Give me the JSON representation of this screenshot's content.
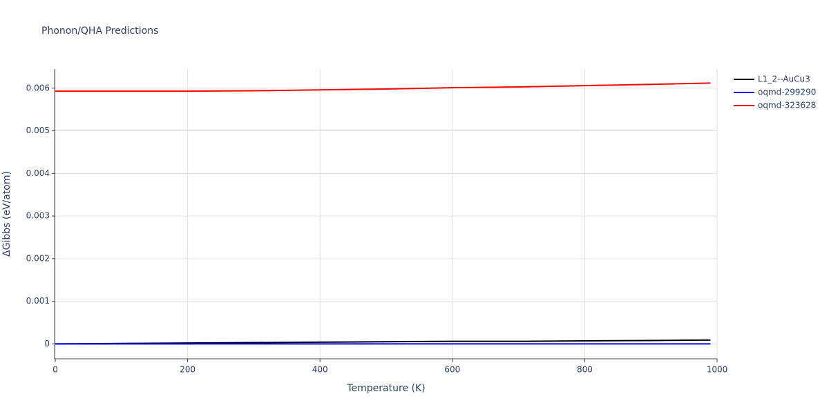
{
  "chart_data": {
    "type": "line",
    "title": "Phonon/QHA Predictions",
    "x_label": "Temperature (K)",
    "y_label": "ΔGibbs (eV/atom)",
    "x": [
      0,
      100,
      200,
      300,
      400,
      500,
      600,
      700,
      800,
      900,
      990
    ],
    "series": [
      {
        "name": "L1_2--AuCu3",
        "color": "#000000",
        "values": [
          0,
          1e-05,
          2e-05,
          3e-05,
          4e-05,
          5e-05,
          6e-05,
          6e-05,
          7e-05,
          8e-05,
          9e-05
        ]
      },
      {
        "name": "oqmd-299290",
        "color": "#0000ff",
        "values": [
          0,
          0,
          0,
          0,
          0,
          0,
          0,
          0,
          0,
          0,
          0
        ]
      },
      {
        "name": "oqmd-323628",
        "color": "#ff0000",
        "values": [
          0.00593,
          0.00593,
          0.00593,
          0.00594,
          0.00596,
          0.00598,
          0.00601,
          0.00603,
          0.00606,
          0.00609,
          0.00612
        ]
      }
    ],
    "xlim": [
      0,
      1000
    ],
    "xticks": [
      0,
      200,
      400,
      600,
      800,
      1000
    ],
    "ylim": [
      -0.00035,
      0.00645
    ],
    "yticks": [
      0,
      0.001,
      0.002,
      0.003,
      0.004,
      0.005,
      0.006
    ],
    "grid": true
  }
}
